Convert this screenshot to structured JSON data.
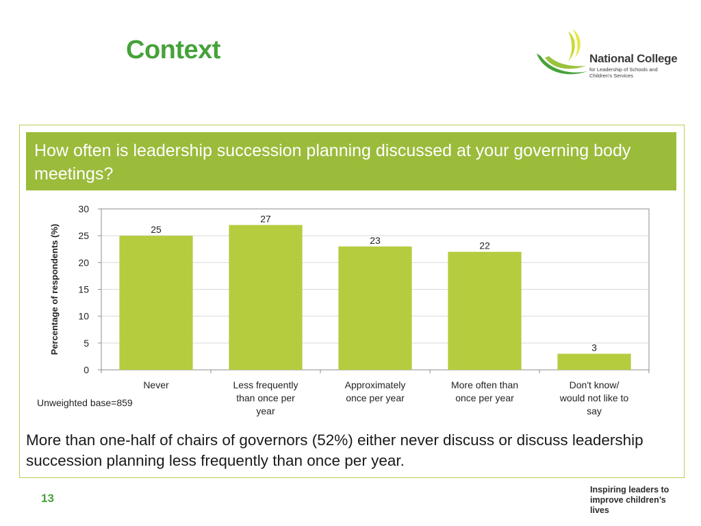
{
  "slide": {
    "title": "Context",
    "page_number": "13",
    "tagline": "Inspiring leaders to improve children’s lives"
  },
  "logo": {
    "name": "National College",
    "subtitle": "for Leadership of Schools and Children's Services"
  },
  "question": "How often is leadership succession planning discussed at your governing body meetings?",
  "base_note": "Unweighted base=859",
  "summary": "More than one-half of chairs of governors (52%) either never discuss or discuss leadership succession planning less frequently than once per year.",
  "colors": {
    "brand_green": "#46a23a",
    "bar_fill": "#b5cc3e",
    "header_fill": "#9bbb3b"
  },
  "chart_data": {
    "type": "bar",
    "categories": [
      "Never",
      "Less frequently than once per year",
      "Approximately once per year",
      "More often than once per year",
      "Don't know/ would not like to say"
    ],
    "category_lines": [
      [
        "Never"
      ],
      [
        "Less frequently",
        "than once per",
        "year"
      ],
      [
        "Approximately",
        "once per year"
      ],
      [
        "More often than",
        "once per year"
      ],
      [
        "Don't know/",
        "would not like to",
        "say"
      ]
    ],
    "values": [
      25,
      27,
      23,
      22,
      3
    ],
    "ylabel": "Percentage of respondents (%)",
    "xlabel": "",
    "ylim": [
      0,
      30
    ],
    "yticks": [
      0,
      5,
      10,
      15,
      20,
      25,
      30
    ],
    "grid": true,
    "legend": "none"
  }
}
